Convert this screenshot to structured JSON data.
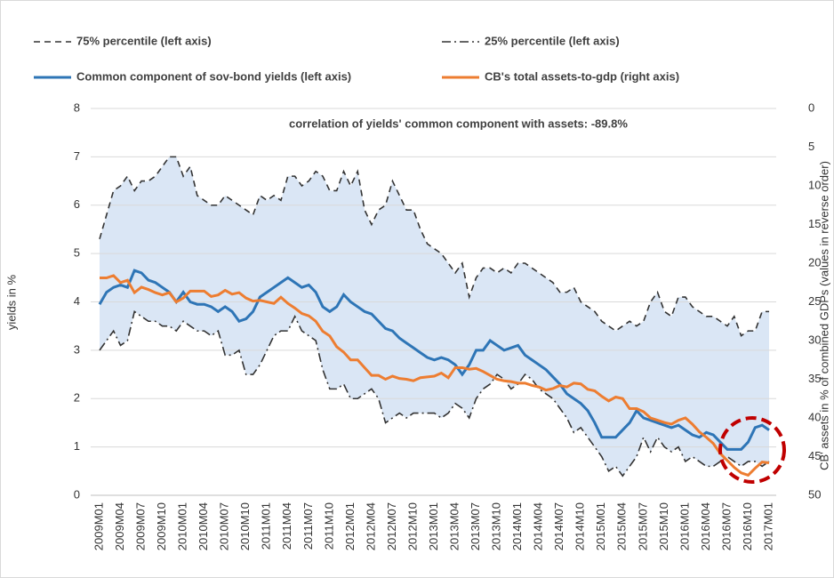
{
  "chart_data": {
    "type": "line",
    "annotation": "correlation of yields' common component with assets: -89.8%",
    "ylabel": "yields in %",
    "y2label": "CB' assets in % of combined GDPs (values in reverse order)",
    "categories": [
      "2009M01",
      null,
      null,
      "2009M04",
      null,
      null,
      "2009M07",
      null,
      null,
      "2009M10",
      null,
      null,
      "2010M01",
      null,
      null,
      "2010M04",
      null,
      null,
      "2010M07",
      null,
      null,
      "2010M10",
      null,
      null,
      "2011M01",
      null,
      null,
      "2011M04",
      null,
      null,
      "2011M07",
      null,
      null,
      "2011M10",
      null,
      null,
      "2012M01",
      null,
      null,
      "2012M04",
      null,
      null,
      "2012M07",
      null,
      null,
      "2012M10",
      null,
      null,
      "2013M01",
      null,
      null,
      "2013M04",
      null,
      null,
      "2013M07",
      null,
      null,
      "2013M10",
      null,
      null,
      "2014M01",
      null,
      null,
      "2014M04",
      null,
      null,
      "2014M07",
      null,
      null,
      "2014M10",
      null,
      null,
      "2015M01",
      null,
      null,
      "2015M04",
      null,
      null,
      "2015M07",
      null,
      null,
      "2015M10",
      null,
      null,
      "2016M01",
      null,
      null,
      "2016M04",
      null,
      null,
      "2016M07",
      null,
      null,
      "2016M10",
      null,
      null,
      "2017M01"
    ],
    "series": [
      {
        "name": "75% percentile (left axis)",
        "color": "#333333",
        "style": "dashed",
        "values": [
          5.3,
          5.8,
          6.3,
          6.4,
          6.6,
          6.3,
          6.5,
          6.5,
          6.6,
          6.8,
          7.0,
          7.0,
          6.6,
          6.8,
          6.2,
          6.1,
          6.0,
          6.0,
          6.2,
          6.1,
          6.0,
          5.9,
          5.8,
          6.2,
          6.1,
          6.2,
          6.1,
          6.6,
          6.6,
          6.4,
          6.5,
          6.7,
          6.6,
          6.3,
          6.3,
          6.7,
          6.4,
          6.7,
          5.9,
          5.6,
          5.9,
          6.0,
          6.5,
          6.2,
          5.9,
          5.9,
          5.5,
          5.2,
          5.1,
          5.0,
          4.8,
          4.6,
          4.8,
          4.1,
          4.5,
          4.7,
          4.7,
          4.6,
          4.7,
          4.6,
          4.8,
          4.8,
          4.7,
          4.6,
          4.5,
          4.4,
          4.2,
          4.2,
          4.3,
          4.0,
          3.9,
          3.8,
          3.6,
          3.5,
          3.4,
          3.5,
          3.6,
          3.5,
          3.6,
          4.0,
          4.2,
          3.8,
          3.7,
          4.1,
          4.1,
          3.9,
          3.8,
          3.7,
          3.7,
          3.6,
          3.5,
          3.7,
          3.3,
          3.4,
          3.4,
          3.8,
          3.8
        ]
      },
      {
        "name": "25% percentile (left axis)",
        "color": "#333333",
        "style": "dashdot",
        "values": [
          3.0,
          3.2,
          3.4,
          3.1,
          3.2,
          3.8,
          3.7,
          3.6,
          3.6,
          3.5,
          3.5,
          3.4,
          3.6,
          3.5,
          3.4,
          3.4,
          3.3,
          3.4,
          2.9,
          2.9,
          3.0,
          2.5,
          2.5,
          2.7,
          3.0,
          3.3,
          3.4,
          3.4,
          3.7,
          3.4,
          3.3,
          3.2,
          2.6,
          2.2,
          2.2,
          2.3,
          2.0,
          2.0,
          2.1,
          2.2,
          2.0,
          1.5,
          1.6,
          1.7,
          1.6,
          1.7,
          1.7,
          1.7,
          1.7,
          1.6,
          1.7,
          1.9,
          1.8,
          1.6,
          2.0,
          2.2,
          2.3,
          2.5,
          2.4,
          2.2,
          2.3,
          2.5,
          2.4,
          2.2,
          2.1,
          2.0,
          1.8,
          1.6,
          1.3,
          1.4,
          1.2,
          1.0,
          0.8,
          0.5,
          0.6,
          0.4,
          0.6,
          0.8,
          1.2,
          0.9,
          1.2,
          1.0,
          0.9,
          1.0,
          0.7,
          0.8,
          0.7,
          0.6,
          0.6,
          0.7,
          0.8,
          0.7,
          0.6,
          0.7,
          0.7,
          0.6,
          0.7
        ]
      },
      {
        "name": "Common component of sov-bond yields (left axis)",
        "color": "#2e75b6",
        "style": "solid",
        "values": [
          3.95,
          4.2,
          4.3,
          4.35,
          4.3,
          4.65,
          4.6,
          4.45,
          4.4,
          4.3,
          4.2,
          4.0,
          4.2,
          4.0,
          3.95,
          3.95,
          3.9,
          3.8,
          3.9,
          3.8,
          3.6,
          3.65,
          3.8,
          4.1,
          4.2,
          4.3,
          4.4,
          4.5,
          4.4,
          4.3,
          4.35,
          4.2,
          3.9,
          3.8,
          3.9,
          4.15,
          4.0,
          3.9,
          3.8,
          3.75,
          3.6,
          3.45,
          3.4,
          3.25,
          3.15,
          3.05,
          2.95,
          2.85,
          2.8,
          2.85,
          2.8,
          2.7,
          2.5,
          2.7,
          3.0,
          3.0,
          3.2,
          3.1,
          3.0,
          3.05,
          3.1,
          2.9,
          2.8,
          2.7,
          2.6,
          2.45,
          2.3,
          2.1,
          2.0,
          1.9,
          1.75,
          1.5,
          1.2,
          1.2,
          1.2,
          1.35,
          1.5,
          1.75,
          1.6,
          1.55,
          1.5,
          1.45,
          1.4,
          1.45,
          1.35,
          1.25,
          1.2,
          1.3,
          1.25,
          1.1,
          0.95,
          0.95,
          0.95,
          1.1,
          1.4,
          1.45,
          1.35
        ]
      },
      {
        "name": "CB's total assets-to-gdp (right axis)",
        "color": "#ed7d31",
        "style": "solid",
        "axis": "y2",
        "values": [
          21.9,
          21.9,
          21.6,
          22.5,
          22.2,
          23.8,
          23.1,
          23.4,
          23.8,
          24.1,
          23.8,
          25.0,
          24.5,
          23.6,
          23.6,
          23.6,
          24.3,
          24.1,
          23.5,
          24.0,
          23.8,
          24.5,
          24.9,
          24.8,
          25.0,
          25.2,
          24.4,
          25.2,
          25.8,
          26.5,
          26.8,
          27.5,
          28.8,
          29.4,
          30.8,
          31.5,
          32.5,
          32.5,
          33.5,
          34.5,
          34.5,
          35.0,
          34.6,
          34.9,
          35.0,
          35.2,
          34.8,
          34.7,
          34.6,
          34.2,
          34.8,
          33.5,
          33.5,
          33.7,
          33.6,
          34.0,
          34.5,
          35.0,
          35.2,
          35.3,
          35.5,
          35.5,
          35.8,
          36.0,
          36.4,
          36.2,
          35.8,
          36.0,
          35.5,
          35.6,
          36.3,
          36.5,
          37.2,
          37.8,
          37.3,
          37.5,
          38.8,
          38.8,
          39.2,
          40.0,
          40.3,
          40.6,
          40.8,
          40.3,
          40.0,
          40.8,
          41.8,
          42.5,
          43.3,
          44.6,
          45.5,
          46.4,
          47.1,
          47.4,
          46.5,
          45.7,
          45.8
        ]
      }
    ],
    "band_color": "#dae6f5",
    "ylim": [
      0,
      8
    ],
    "yticks": [
      0,
      1,
      2,
      3,
      4,
      5,
      6,
      7,
      8
    ],
    "y2lim": [
      0,
      50
    ],
    "y2ticks": [
      0,
      5,
      10,
      15,
      20,
      25,
      30,
      35,
      40,
      45,
      50
    ],
    "y2_reversed": true,
    "grid": true
  }
}
